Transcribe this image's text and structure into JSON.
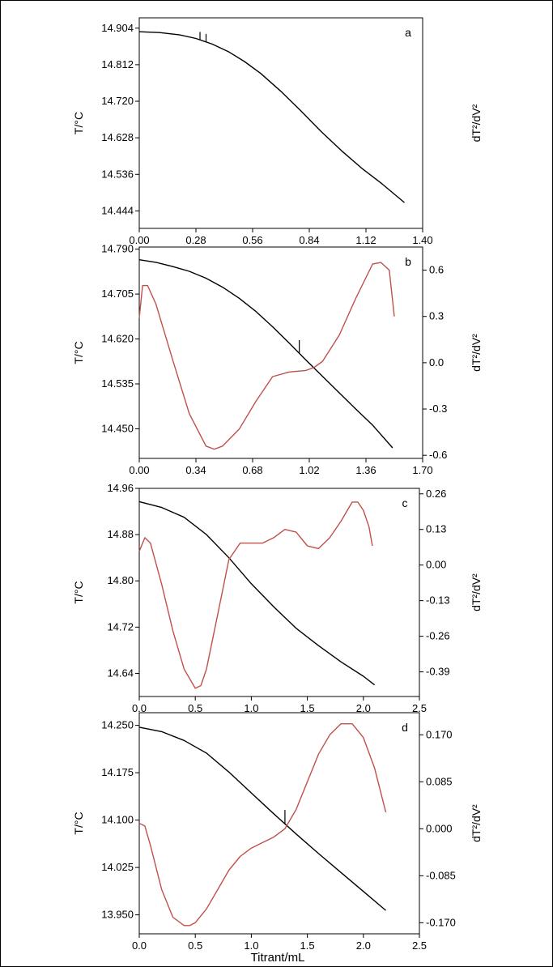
{
  "figure": {
    "x_title": "Titrant/mL",
    "left_ylabel": "T/°C",
    "right_ylabel": "dT²/dV²"
  },
  "chart_data": [
    {
      "type": "line",
      "panel_label": "a",
      "xlim": [
        0.0,
        1.4
      ],
      "xticks": [
        "0.00",
        "0.28",
        "0.56",
        "0.84",
        "1.12",
        "1.40"
      ],
      "ylabel": "T/°C",
      "ylim": [
        14.4,
        14.93
      ],
      "yticks": [
        "14.904",
        "14.812",
        "14.720",
        "14.628",
        "14.536",
        "14.444"
      ],
      "y2label": "dT²/dV²",
      "y2ticks": [],
      "series": [
        {
          "axis": "left",
          "color": "#000000",
          "x": [
            0.0,
            0.1,
            0.2,
            0.28,
            0.36,
            0.44,
            0.52,
            0.6,
            0.7,
            0.8,
            0.9,
            1.0,
            1.1,
            1.2,
            1.31
          ],
          "y": [
            14.895,
            14.893,
            14.887,
            14.878,
            14.864,
            14.845,
            14.82,
            14.79,
            14.745,
            14.695,
            14.643,
            14.595,
            14.551,
            14.512,
            14.465
          ],
          "spikes": [
            [
              0.3,
              0.02
            ],
            [
              0.33,
              0.02
            ]
          ]
        }
      ]
    },
    {
      "type": "line",
      "panel_label": "b",
      "xlim": [
        0.0,
        1.7
      ],
      "xticks": [
        "0.00",
        "0.34",
        "0.68",
        "1.02",
        "1.36",
        "1.70"
      ],
      "ylabel": "T/°C",
      "ylim": [
        14.394,
        14.794
      ],
      "yticks": [
        "14.790",
        "14.705",
        "14.620",
        "14.535",
        "14.450"
      ],
      "y2label": "dT²/dV²",
      "y2lim": [
        -0.62,
        0.75
      ],
      "y2ticks": [
        "0.6",
        "0.3",
        "0.0",
        "-0.3",
        "-0.6"
      ],
      "series": [
        {
          "axis": "left",
          "color": "#000000",
          "x": [
            0.0,
            0.1,
            0.2,
            0.3,
            0.4,
            0.5,
            0.6,
            0.7,
            0.8,
            0.9,
            1.0,
            1.1,
            1.2,
            1.3,
            1.4,
            1.52
          ],
          "y": [
            14.77,
            14.765,
            14.757,
            14.748,
            14.735,
            14.718,
            14.697,
            14.672,
            14.643,
            14.612,
            14.58,
            14.549,
            14.518,
            14.487,
            14.457,
            14.414
          ],
          "spikes": [
            [
              0.96,
              0.025
            ]
          ]
        },
        {
          "axis": "right",
          "color": "#c0504d",
          "x": [
            0.0,
            0.02,
            0.05,
            0.1,
            0.2,
            0.3,
            0.4,
            0.45,
            0.5,
            0.6,
            0.7,
            0.8,
            0.9,
            1.0,
            1.05,
            1.1,
            1.2,
            1.3,
            1.4,
            1.45,
            1.5,
            1.53
          ],
          "y": [
            0.29,
            0.5,
            0.5,
            0.38,
            0.02,
            -0.33,
            -0.54,
            -0.56,
            -0.54,
            -0.43,
            -0.25,
            -0.09,
            -0.06,
            -0.05,
            -0.03,
            0.01,
            0.18,
            0.42,
            0.64,
            0.65,
            0.6,
            0.3
          ]
        }
      ]
    },
    {
      "type": "line",
      "panel_label": "c",
      "xlim": [
        0.0,
        2.5
      ],
      "xticks": [
        "0.0",
        "0.5",
        "1.0",
        "1.5",
        "2.0",
        "2.5"
      ],
      "ylabel": "T/°C",
      "ylim": [
        14.6,
        14.96
      ],
      "yticks": [
        "14.96",
        "14.88",
        "14.80",
        "14.72",
        "14.64"
      ],
      "y2label": "dT²/dV²",
      "y2lim": [
        -0.48,
        0.28
      ],
      "y2ticks": [
        "0.26",
        "0.13",
        "0.00",
        "-0.13",
        "-0.26",
        "-0.39"
      ],
      "series": [
        {
          "axis": "left",
          "color": "#000000",
          "x": [
            0.0,
            0.2,
            0.4,
            0.6,
            0.8,
            1.0,
            1.2,
            1.4,
            1.6,
            1.8,
            2.0,
            2.1
          ],
          "y": [
            14.937,
            14.927,
            14.91,
            14.88,
            14.84,
            14.795,
            14.755,
            14.718,
            14.688,
            14.66,
            14.635,
            14.62
          ]
        },
        {
          "axis": "right",
          "color": "#c0504d",
          "x": [
            0.0,
            0.05,
            0.1,
            0.2,
            0.3,
            0.4,
            0.5,
            0.55,
            0.6,
            0.7,
            0.8,
            0.9,
            1.0,
            1.1,
            1.2,
            1.3,
            1.4,
            1.5,
            1.6,
            1.7,
            1.8,
            1.9,
            1.95,
            2.0,
            2.05,
            2.08
          ],
          "y": [
            0.05,
            0.1,
            0.08,
            -0.07,
            -0.24,
            -0.38,
            -0.45,
            -0.44,
            -0.38,
            -0.18,
            0.02,
            0.08,
            0.08,
            0.08,
            0.1,
            0.13,
            0.12,
            0.07,
            0.06,
            0.1,
            0.16,
            0.23,
            0.23,
            0.2,
            0.14,
            0.07
          ]
        }
      ]
    },
    {
      "type": "line",
      "panel_label": "d",
      "xlim": [
        0.0,
        2.5
      ],
      "xticks": [
        "0.0",
        "0.5",
        "1.0",
        "1.5",
        "2.0",
        "2.5"
      ],
      "ylabel": "T/°C",
      "ylim": [
        13.92,
        14.27
      ],
      "yticks": [
        "14.250",
        "14.175",
        "14.100",
        "14.025",
        "13.950"
      ],
      "y2label": "dT²/dV²",
      "y2lim": [
        -0.19,
        0.21
      ],
      "y2ticks": [
        "0.170",
        "0.085",
        "0.000",
        "-0.085",
        "-0.170"
      ],
      "xlabel": "Titrant/mL",
      "series": [
        {
          "axis": "left",
          "color": "#000000",
          "x": [
            0.0,
            0.2,
            0.4,
            0.6,
            0.8,
            1.0,
            1.2,
            1.4,
            1.6,
            1.8,
            2.0,
            2.2
          ],
          "y": [
            14.247,
            14.24,
            14.226,
            14.206,
            14.176,
            14.143,
            14.11,
            14.078,
            14.047,
            14.017,
            13.987,
            13.957
          ],
          "spikes": [
            [
              1.3,
              0.022
            ]
          ]
        },
        {
          "axis": "right",
          "color": "#c0504d",
          "x": [
            0.0,
            0.05,
            0.1,
            0.2,
            0.3,
            0.4,
            0.45,
            0.5,
            0.6,
            0.7,
            0.8,
            0.9,
            1.0,
            1.1,
            1.2,
            1.3,
            1.4,
            1.5,
            1.6,
            1.7,
            1.8,
            1.9,
            2.0,
            2.1,
            2.2
          ],
          "y": [
            0.01,
            0.005,
            -0.03,
            -0.11,
            -0.16,
            -0.175,
            -0.175,
            -0.17,
            -0.145,
            -0.11,
            -0.075,
            -0.05,
            -0.035,
            -0.025,
            -0.015,
            0.0,
            0.035,
            0.085,
            0.135,
            0.17,
            0.19,
            0.19,
            0.165,
            0.11,
            0.03
          ]
        }
      ]
    }
  ]
}
